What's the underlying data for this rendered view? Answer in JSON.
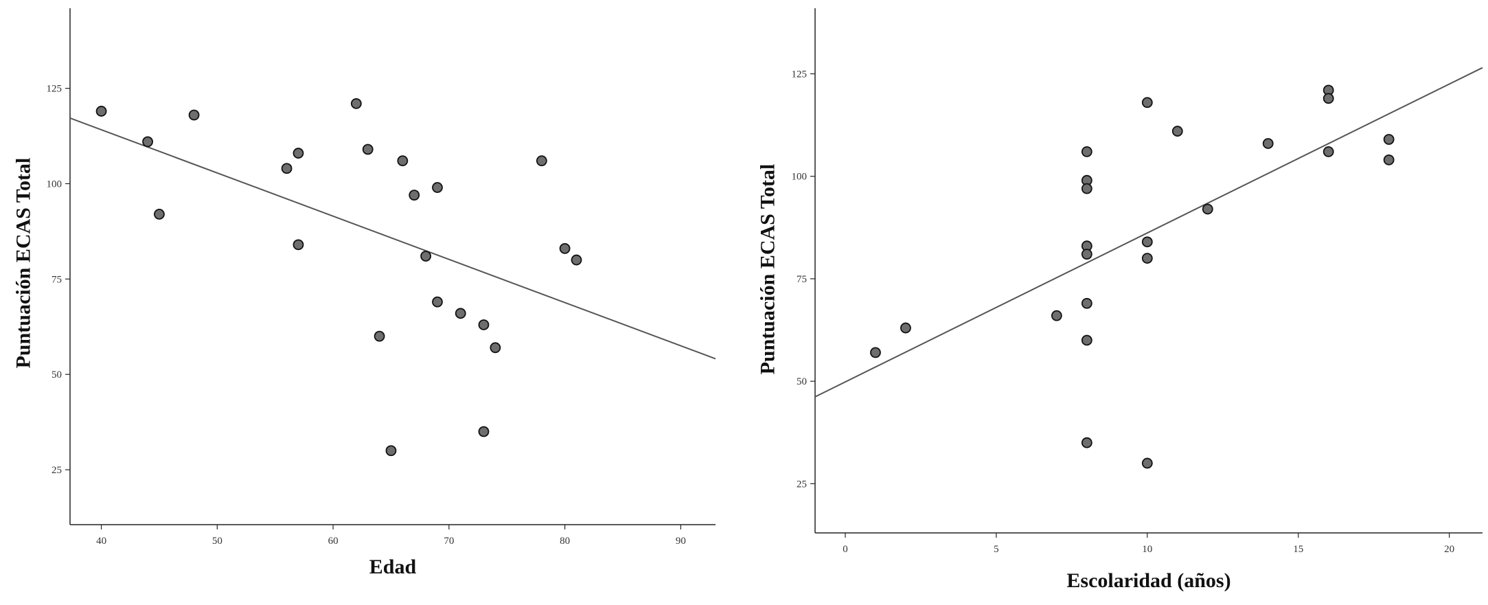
{
  "chart_data": [
    {
      "type": "scatter",
      "xlabel": "Edad",
      "ylabel": "Puntuación ECAS Total",
      "xlim": [
        37.3,
        93.0
      ],
      "ylim": [
        10.6,
        146.0
      ],
      "x_ticks": [
        40,
        50,
        60,
        70,
        80,
        90
      ],
      "x_tick_labels": [
        "40",
        "50",
        "60",
        "70",
        "80",
        "90"
      ],
      "y_ticks": [
        25,
        50,
        75,
        100,
        125
      ],
      "y_tick_labels": [
        "25",
        "50",
        "75",
        "100",
        "125"
      ],
      "grid": false,
      "points": [
        {
          "x": 40,
          "y": 119
        },
        {
          "x": 44,
          "y": 111
        },
        {
          "x": 45,
          "y": 92
        },
        {
          "x": 48,
          "y": 118
        },
        {
          "x": 56,
          "y": 104
        },
        {
          "x": 57,
          "y": 108
        },
        {
          "x": 57,
          "y": 84
        },
        {
          "x": 62,
          "y": 121
        },
        {
          "x": 63,
          "y": 109
        },
        {
          "x": 64,
          "y": 60
        },
        {
          "x": 65,
          "y": 30
        },
        {
          "x": 66,
          "y": 106
        },
        {
          "x": 67,
          "y": 97
        },
        {
          "x": 68,
          "y": 81
        },
        {
          "x": 69,
          "y": 99
        },
        {
          "x": 69,
          "y": 69
        },
        {
          "x": 71,
          "y": 66
        },
        {
          "x": 73,
          "y": 63
        },
        {
          "x": 73,
          "y": 35
        },
        {
          "x": 74,
          "y": 57
        },
        {
          "x": 78,
          "y": 106
        },
        {
          "x": 80,
          "y": 83
        },
        {
          "x": 81,
          "y": 80
        }
      ],
      "fit_line": {
        "x": [
          37.3,
          93.0
        ],
        "y": [
          117.2,
          54.1
        ]
      }
    },
    {
      "type": "scatter",
      "xlabel": "Escolaridad (años)",
      "ylabel": "Puntuación ECAS Total",
      "xlim": [
        -1.0,
        21.1
      ],
      "ylim": [
        13.0,
        141.0
      ],
      "x_ticks": [
        0,
        5,
        10,
        15,
        20
      ],
      "x_tick_labels": [
        "0",
        "5",
        "10",
        "15",
        "20"
      ],
      "y_ticks": [
        25,
        50,
        75,
        100,
        125
      ],
      "y_tick_labels": [
        "25",
        "50",
        "75",
        "100",
        "125"
      ],
      "grid": false,
      "points": [
        {
          "x": 1,
          "y": 57
        },
        {
          "x": 2,
          "y": 63
        },
        {
          "x": 7,
          "y": 66
        },
        {
          "x": 8,
          "y": 106
        },
        {
          "x": 8,
          "y": 99
        },
        {
          "x": 8,
          "y": 97
        },
        {
          "x": 8,
          "y": 83
        },
        {
          "x": 8,
          "y": 81
        },
        {
          "x": 8,
          "y": 69
        },
        {
          "x": 8,
          "y": 60
        },
        {
          "x": 8,
          "y": 35
        },
        {
          "x": 10,
          "y": 118
        },
        {
          "x": 10,
          "y": 84
        },
        {
          "x": 10,
          "y": 80
        },
        {
          "x": 10,
          "y": 30
        },
        {
          "x": 11,
          "y": 111
        },
        {
          "x": 12,
          "y": 92
        },
        {
          "x": 14,
          "y": 108
        },
        {
          "x": 16,
          "y": 121
        },
        {
          "x": 16,
          "y": 119
        },
        {
          "x": 16,
          "y": 106
        },
        {
          "x": 18,
          "y": 109
        },
        {
          "x": 18,
          "y": 104
        }
      ],
      "fit_line": {
        "x": [
          -1.0,
          21.1
        ],
        "y": [
          46.2,
          126.5
        ]
      }
    }
  ]
}
